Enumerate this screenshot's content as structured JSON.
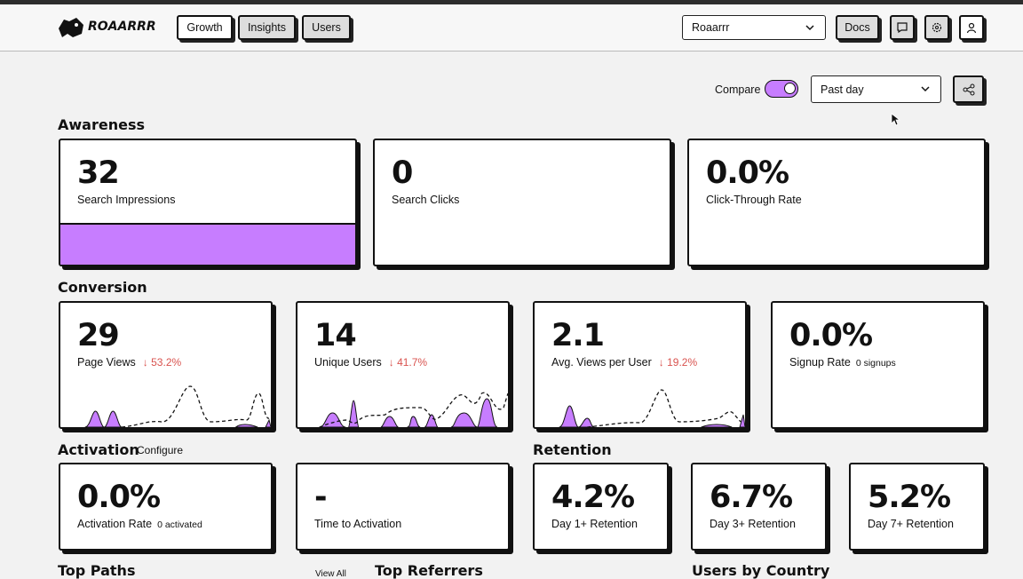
{
  "header": {
    "logo": "ROAARRR",
    "nav": [
      "Growth",
      "Insights",
      "Users"
    ],
    "site": "Roaarrr",
    "docs": "Docs"
  },
  "controls": {
    "compare": "Compare",
    "range": "Past day"
  },
  "awareness": {
    "title": "Awareness",
    "cards": [
      {
        "value": "32",
        "label": "Search Impressions"
      },
      {
        "value": "0",
        "label": "Search Clicks"
      },
      {
        "value": "0.0%",
        "label": "Click-Through Rate"
      }
    ]
  },
  "conversion": {
    "title": "Conversion",
    "cards": [
      {
        "value": "29",
        "label": "Page Views",
        "change": "↓ 53.2%"
      },
      {
        "value": "14",
        "label": "Unique Users",
        "change": "↓ 41.7%"
      },
      {
        "value": "2.1",
        "label": "Avg. Views per User",
        "change": "↓ 19.2%"
      },
      {
        "value": "0.0%",
        "label": "Signup Rate",
        "note": "0 signups"
      }
    ]
  },
  "activation": {
    "title": "Activation",
    "action": "Configure",
    "cards": [
      {
        "value": "0.0%",
        "label": "Activation Rate",
        "note": "0 activated"
      },
      {
        "value": "-",
        "label": "Time to Activation"
      }
    ]
  },
  "retention": {
    "title": "Retention",
    "cards": [
      {
        "value": "4.2%",
        "label": "Day 1+ Retention"
      },
      {
        "value": "6.7%",
        "label": "Day 3+ Retention"
      },
      {
        "value": "5.2%",
        "label": "Day 7+ Retention"
      }
    ]
  },
  "sections": [
    "Top Paths",
    "Top Referrers",
    "Users by Country"
  ],
  "view_all": "View All"
}
